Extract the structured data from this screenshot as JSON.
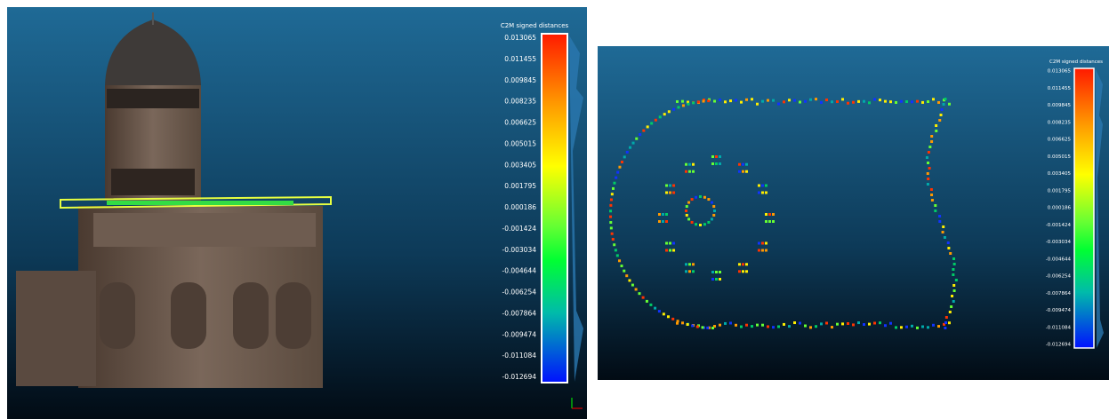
{
  "left_view": {
    "scale": {
      "title": "C2M signed distances",
      "labels": [
        "0.013065",
        "0.011455",
        "0.009845",
        "0.008235",
        "0.006625",
        "0.005015",
        "0.003405",
        "0.001795",
        "0.000186",
        "-0.001424",
        "-0.003034",
        "-0.004644",
        "-0.006254",
        "-0.007864",
        "-0.009474",
        "-0.011084",
        "-0.012694"
      ]
    }
  },
  "right_view": {
    "scale": {
      "title": "C2M signed distances",
      "labels": [
        "0.013065",
        "0.011455",
        "0.009845",
        "0.008235",
        "0.006625",
        "0.005015",
        "0.003405",
        "0.001795",
        "0.000186",
        "-0.001424",
        "-0.003034",
        "-0.004644",
        "-0.006254",
        "-0.007864",
        "-0.009474",
        "-0.011084",
        "-0.012694"
      ]
    }
  }
}
